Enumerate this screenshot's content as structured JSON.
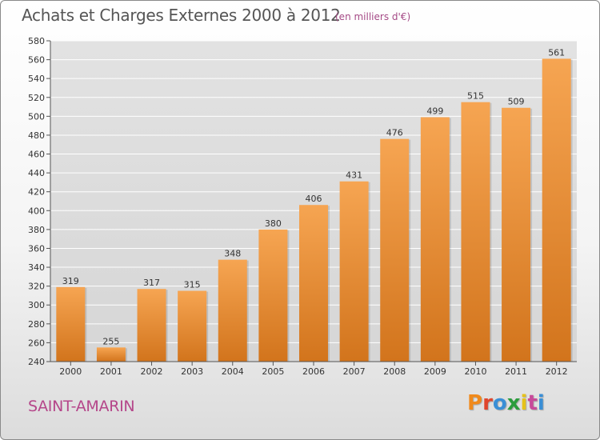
{
  "header": {
    "title": "Achats et Charges Externes 2000 à 2012",
    "subtitle": "(en milliers d'€)"
  },
  "footer": {
    "town": "SAINT-AMARIN",
    "logo": [
      "P",
      "r",
      "o",
      "x",
      "i",
      "t",
      "i"
    ]
  },
  "colors": {
    "bar_top": "#f6a552",
    "bar_bottom": "#d2741c",
    "title": "#555555",
    "subtitle": "#a54a86",
    "town": "#b5468a",
    "grid": "#ffffff",
    "logo": [
      "#f08a1c",
      "#e0462d",
      "#3a8fd6",
      "#2c9d3d",
      "#e6c21a",
      "#c84a9a",
      "#3a8fd6"
    ]
  },
  "chart_data": {
    "type": "bar",
    "categories": [
      "2000",
      "2001",
      "2002",
      "2003",
      "2004",
      "2005",
      "2006",
      "2007",
      "2008",
      "2009",
      "2010",
      "2011",
      "2012"
    ],
    "values": [
      319,
      255,
      317,
      315,
      348,
      380,
      406,
      431,
      476,
      499,
      515,
      509,
      561
    ],
    "title": "Achats et Charges Externes 2000 à 2012",
    "xlabel": "",
    "ylabel": "",
    "ylim": [
      240,
      580
    ],
    "yticks": [
      240,
      260,
      280,
      300,
      320,
      340,
      360,
      380,
      400,
      420,
      440,
      460,
      480,
      500,
      520,
      540,
      560,
      580
    ],
    "grid": true,
    "legend": "none"
  }
}
